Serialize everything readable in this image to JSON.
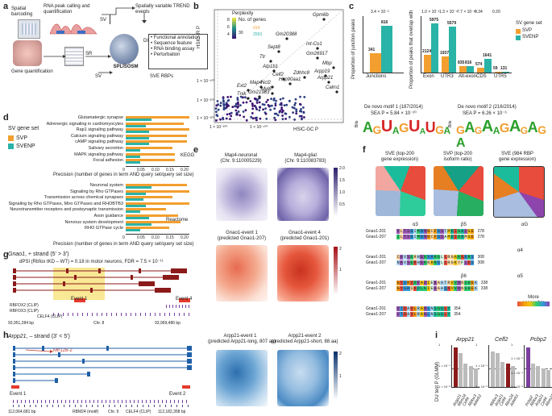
{
  "panels": {
    "a": "a",
    "b": "b",
    "c": "c",
    "d": "d",
    "e": "e",
    "f": "f",
    "g": "g",
    "h": "h",
    "i": "i"
  },
  "a": {
    "spatial_barcoding": "Spatial barcoding",
    "rna_peak": "RNA peak calling and quantification",
    "gene_quant": "Gene quantification",
    "sv": "SV",
    "sr": "SR",
    "sv2": "SV",
    "du": "DU",
    "splisosm": "SPLISOSM",
    "trend": "Spatially variable TREND events",
    "list": [
      "• Functional annotation",
      "• Sequence feature",
      "• RNA binding assay",
      "• Perturbation"
    ],
    "sve_rbps": "SVE RBPs"
  },
  "b": {
    "ylabel": "HSIC-IR P",
    "xlabel": "HSIC-GC P",
    "legend_title1": "Perplexity",
    "legend_title2": "No. of genes",
    "perp_ticks": [
      "8",
      "6",
      "4"
    ],
    "ngenes": [
      {
        "k": "30",
        "v": "914"
      },
      {
        "k": "",
        "v": "2593"
      }
    ],
    "yticks": [
      "1 × 10⁻¹⁰⁰",
      "1 × 10⁻²⁰⁰",
      "1 × 10⁻³⁰⁰"
    ],
    "xticks": [
      "1 × 10⁻³⁰⁰",
      "1 × 10⁻¹⁰⁰"
    ],
    "genes": [
      "Gpm6b",
      "Gm20388",
      "mt-Co1",
      "Gm26917",
      "Mbp",
      "Arpp19",
      "Arpp21",
      "Calm1",
      "Sept8",
      "Ttr",
      "Atp1b1",
      "Celf2",
      "Hsp90aa1",
      "Zdhhc8",
      "Ext2",
      "Map4",
      "Ncl2",
      "Myl6",
      "Tnik",
      "Gm21983"
    ]
  },
  "c": {
    "ylabel_left": "Proportion of junction peaks",
    "ylabel_right": "Proportion of peaks that overlap with",
    "pval_left": "3.4 × 10⁻²",
    "pvals_right": [
      "1.0 × 10⁻¹",
      "1.3 × 10⁻⁹",
      "7.7 × 10⁻¹²",
      "0.34",
      "0.20"
    ],
    "legend_title": "SV gene set",
    "legend": [
      "SVP",
      "SVENP"
    ],
    "junction": {
      "label": "Junctions",
      "svp": 341,
      "svenp": 816
    },
    "chart_data": {
      "type": "bar",
      "categories": [
        "Exon",
        "UTR3",
        "Alt-exon",
        "CDS",
        "UTR5"
      ],
      "series": [
        {
          "name": "SVP",
          "values": [
            2124,
            1937,
            835,
            574,
            59
          ]
        },
        {
          "name": "SVENP",
          "values": [
            5975,
            5579,
            816,
            1641,
            131
          ]
        }
      ]
    },
    "motif1_title": "De novo motif 1 (187/2014)",
    "motif1_sea": "SEA P = 5.84 × 10⁻²⁰",
    "motif2_title": "De novo motif 2 (216/2014)",
    "motif2_sea": "SEA P = 6.26 × 10⁻⁶",
    "bits": "Bits",
    "logo1": "AGUAGUAUGA",
    "logo2": "GAGAAGAGAGA"
  },
  "d": {
    "legend_title": "SV gene set",
    "legend": [
      "SVP",
      "SVENP"
    ],
    "kegg_terms": [
      "Glutamatergic synapse",
      "Adrenergic signaling in cardiomyocytes",
      "Rap1 signaling pathway",
      "Calcium signaling pathway",
      "cAMP signaling pathway",
      "Salivary secretion",
      "MAPK signaling pathway",
      "Focal adhesion"
    ],
    "kegg_label": "KEGG",
    "kegg_svp": [
      0.22,
      0.2,
      0.22,
      0.21,
      0.21,
      0.16,
      0.17,
      0.17
    ],
    "kegg_svenp": [
      0.09,
      0.07,
      0.08,
      0.08,
      0.08,
      0.05,
      0.05,
      0.05
    ],
    "axis_title": "Precision (number of genes in term AND query set/query set size)",
    "react_terms": [
      "Neuronal system",
      "Signaling by Rho GTPases",
      "Transmission across chemical synapses",
      "Signaling by Rho GTPases, Miro GTPases and RHOBTB3",
      "Neurotransmitter receptors and postsynaptic transmission",
      "Axon guidance",
      "Nervous system development",
      "RHO GTPase cycle"
    ],
    "react_label": "Reactome",
    "react_svp": [
      0.21,
      0.22,
      0.16,
      0.22,
      0.14,
      0.18,
      0.19,
      0.15
    ],
    "react_svenp": [
      0.09,
      0.07,
      0.06,
      0.07,
      0.05,
      0.08,
      0.09,
      0.05
    ],
    "axis_ticks": [
      "0",
      "0.05",
      "0.10",
      "0.15",
      "0.20"
    ]
  },
  "e": {
    "titles": [
      "Map4-neuronal\n(Chr. 9:110005229)",
      "Map4-glial\n(Chr. 9:110083783)",
      "Gnao1-event 1\n(predicted Gnao1-207)",
      "Gnao1-event 4\n(predicted Gnao1-201)",
      "Arpp21-event 1\n(predicted Arpp21-long, 807 aa)",
      "Arpp21-event 2\n(predicted Arpp21-short, 88 aa)"
    ],
    "cbar1": [
      "2.0",
      "1.5",
      "1.0",
      "0.5"
    ],
    "cbar2": [
      "2",
      "1"
    ],
    "cbar3": [
      "2",
      "1"
    ]
  },
  "f": {
    "titles": [
      "SVE (top-200\ngene expression)",
      "SVP (top-200\nisoform ratio)",
      "SVE (984 RBP\ngene expression)"
    ],
    "align_rows": [
      {
        "name": "Gnao1-201",
        "seq": "VLTSGIMNNHCFSSTMDIAALGE",
        "n": "278"
      },
      {
        "name": "Gnao1-207",
        "seq": "ILTSGIMNNHCFSSAMDIAAMGE",
        "n": "278"
      },
      {
        "name": "Gnao1-201",
        "seq": "CAVSERHEKVARGLLRGAKGKRS",
        "n": "308"
      },
      {
        "name": "Gnao1-207",
        "seq": "NAVSEKHEKNRRSLLRGKYFLES",
        "n": "308"
      },
      {
        "name": "Gnao1-201",
        "seq": "GYSNVDFADIEKAATRVVNNSHEK",
        "n": "338"
      },
      {
        "name": "Gnao1-207",
        "seq": "GYSRSKDLKIEAAAQAVVNNSHEK",
        "n": "338"
      },
      {
        "name": "Gnao1-201",
        "seq": "VTDAVLRANLNSGGLY",
        "n": "354"
      },
      {
        "name": "Gnao1-207",
        "seq": "VTDAVLRANLNSGGLY",
        "n": "354"
      }
    ],
    "struct_labels": [
      "α3",
      "β5",
      "αG",
      "α4",
      "β6",
      "α5"
    ],
    "more_accessible": "More accessible"
  },
  "g": {
    "gene": "Gnao1",
    "strand": ", + strand (5' > 3')",
    "dpsi": "dPSI (Rbfox tKD – WT) = 0.18 in motor neurons, FDR = 7.5 × 10⁻¹¹",
    "event1": "Event 1",
    "event4": "Event 4",
    "tracks": [
      "RBFOX2 (CLIP)",
      "RBFOX3 (CLIP)",
      "CELF4 (CLIP)"
    ],
    "coord_left": "93,951,284 bp",
    "coord_right": "93,969,486 bp",
    "chr": "Chr. 8"
  },
  "h": {
    "gene": "Arpp21",
    "strand": ", – strand (3' < 5')",
    "mir": "Mir128-2",
    "event1": "Event 1",
    "event2": "Event 2",
    "tracks": [
      "RBM24 (motif)",
      "Chr. 9",
      "CELF4 (CLIP)"
    ],
    "coord_left": "112,064,681 bp",
    "coord_right": "112,182,358 bp"
  },
  "i": {
    "ylabel": "DU test P (GLMM)",
    "genes": [
      "Arpp21",
      "Celf2",
      "Pcbp2"
    ],
    "plot1": {
      "labels": [
        "Arpp21",
        "Rbm24",
        "Celf4",
        "Rbfox3",
        "Adarb1"
      ],
      "yticks": [
        "1 × 10⁻⁸",
        "1 × 10⁻⁴",
        "1"
      ]
    },
    "plot2": {
      "labels": [
        "Rbfox3",
        "Arpp21",
        "Celf4",
        "Rbm24",
        "Adarb1"
      ],
      "yticks": [
        "1 × 10⁻⁸",
        "1 × 10⁻⁴",
        "1"
      ]
    },
    "plot3": {
      "labels": [
        "Pcbp2",
        "Rbfox3",
        "Arpp21",
        "Celf4",
        "Rbm24"
      ],
      "yticks": [
        "1 × 10⁻⁶",
        "1 × 10⁻⁴",
        "1 × 10⁻²",
        "1"
      ]
    }
  }
}
